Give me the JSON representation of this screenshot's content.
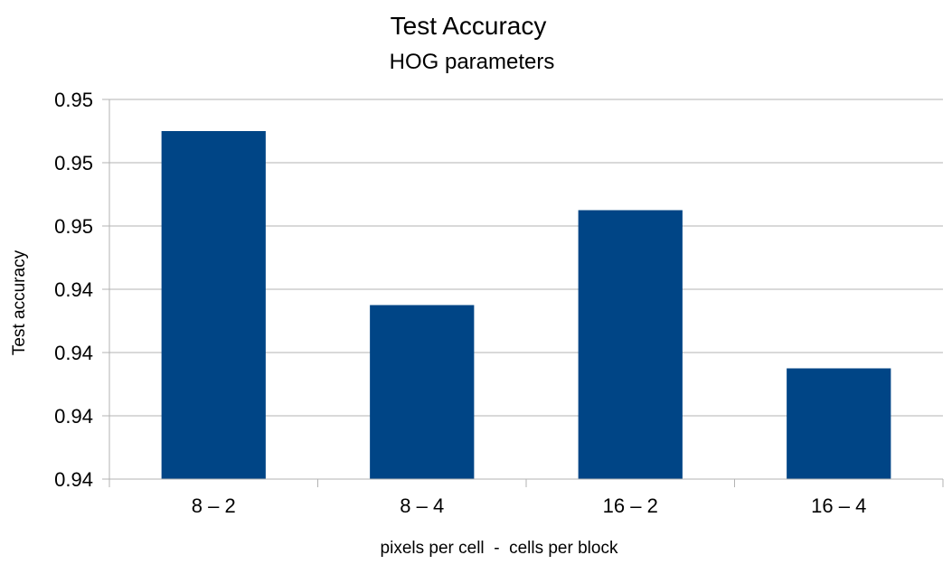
{
  "chart_data": {
    "type": "bar",
    "title": "Test Accuracy",
    "subtitle": "HOG parameters",
    "xlabel": "pixels per cell  -  cells per block",
    "ylabel": "Test accuracy",
    "categories": [
      "8 – 2",
      "8 – 4",
      "16 – 2",
      "16 – 4"
    ],
    "values": [
      0.9495,
      0.944,
      0.947,
      0.942
    ],
    "ylim": [
      0.9385,
      0.9505
    ],
    "y_ticks": [
      0.9385,
      0.9405,
      0.9425,
      0.9445,
      0.9465,
      0.9485,
      0.9505
    ],
    "y_tick_labels": [
      "0.94",
      "0.94",
      "0.94",
      "0.94",
      "0.95",
      "0.95",
      "0.95"
    ],
    "grid": true,
    "legend": "none",
    "bar_color": "#004586"
  }
}
